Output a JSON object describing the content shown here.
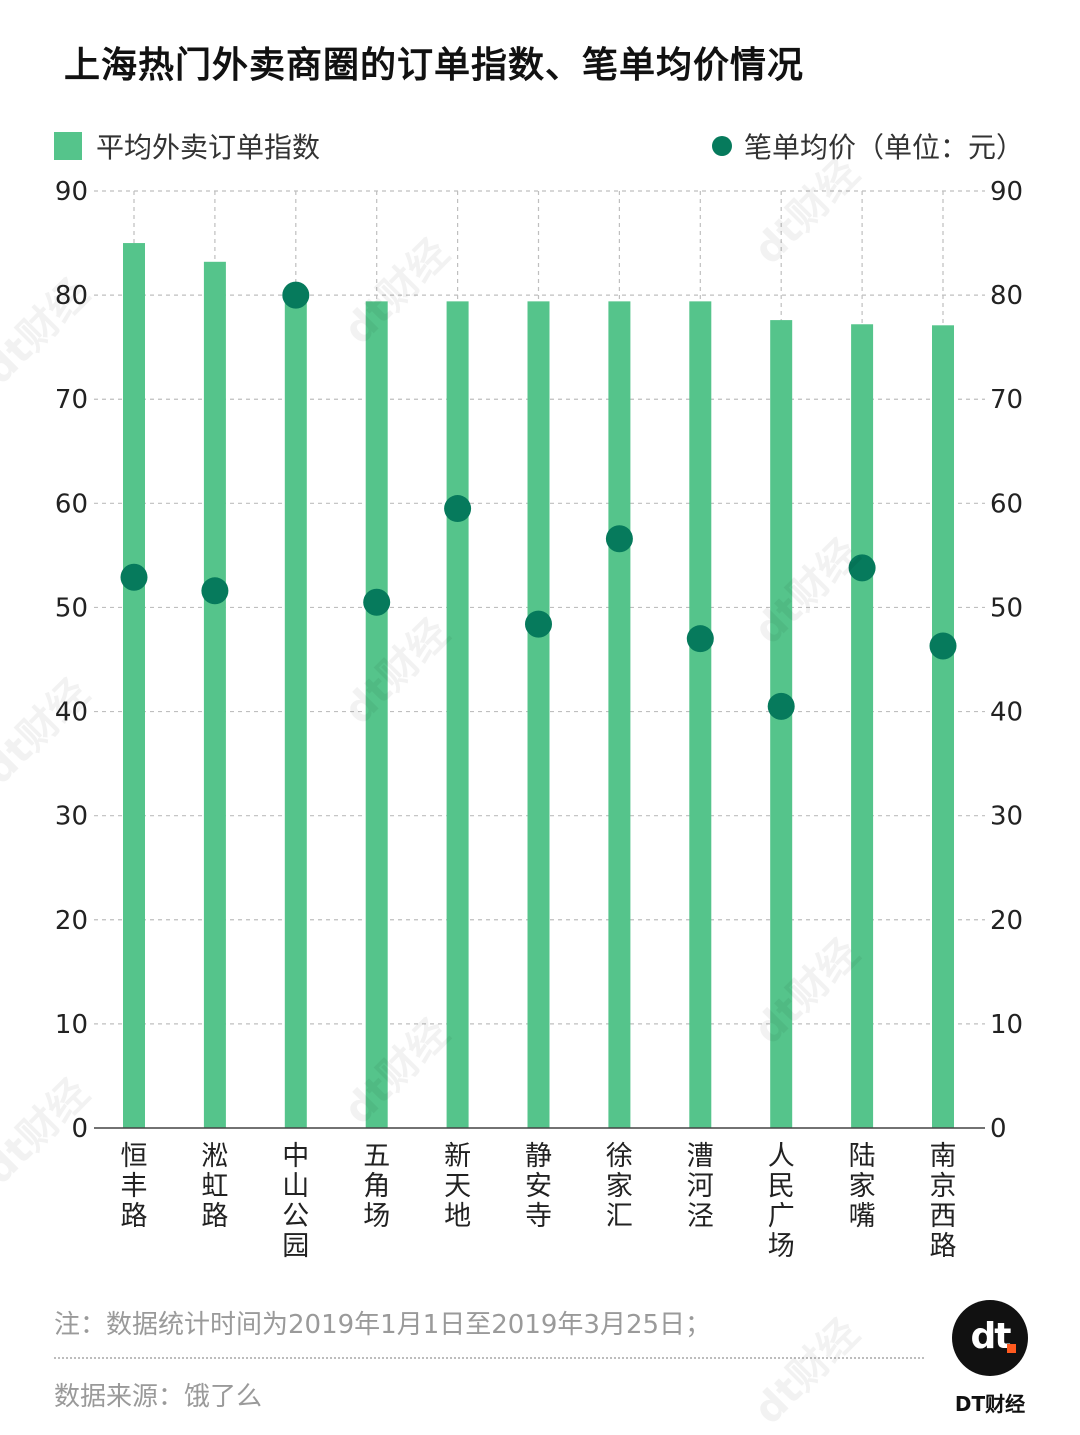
{
  "title": "上海热门外卖商圈的订单指数、笔单均价情况",
  "legend": {
    "bar_label": "平均外卖订单指数",
    "dot_label": "笔单均价（单位：元）"
  },
  "colors": {
    "bar": "#55c48b",
    "dot": "#067a5c",
    "grid": "#bfbfbf",
    "logo_accent": "#ff5a1f"
  },
  "chart_data": {
    "type": "bar",
    "categories": [
      "恒丰路",
      "淞虹路",
      "中山公园",
      "五角场",
      "新天地",
      "静安寺",
      "徐家汇",
      "漕河泾",
      "人民广场",
      "陆家嘴",
      "南京西路"
    ],
    "series": [
      {
        "name": "平均外卖订单指数",
        "kind": "bar",
        "axis": "left",
        "values": [
          85,
          83.2,
          80,
          79.4,
          79.4,
          79.4,
          79.4,
          79.4,
          77.6,
          77.2,
          77.1
        ]
      },
      {
        "name": "笔单均价（单位：元）",
        "kind": "scatter",
        "axis": "right",
        "values": [
          52.9,
          51.6,
          80,
          50.5,
          59.5,
          48.4,
          56.6,
          47,
          40.5,
          53.8,
          46.3
        ]
      }
    ],
    "ylim": [
      0,
      90
    ],
    "yticks": [
      0,
      10,
      20,
      30,
      40,
      50,
      60,
      70,
      80,
      90
    ],
    "y2lim": [
      0,
      90
    ],
    "xlabel": "",
    "ylabel": "",
    "grid": true
  },
  "note": "注：数据统计时间为2019年1月1日至2019年3月25日；",
  "source": "数据来源：饿了么",
  "logo": {
    "text": "dt",
    "brand": "DT财经"
  },
  "watermark": "dt财经"
}
